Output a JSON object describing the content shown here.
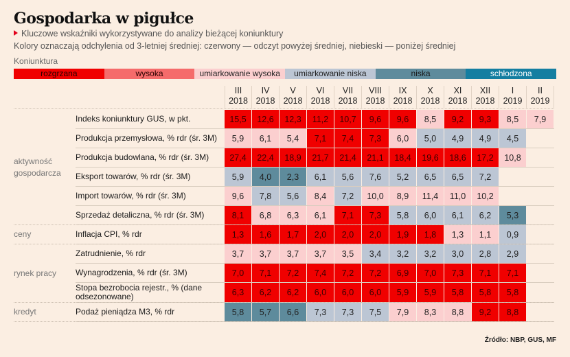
{
  "header": {
    "title": "Gospodarka w pigułce",
    "subtitle": "Kluczowe wskaźniki wykorzystywane do analizy bieżącej koniunktury",
    "note": "Kolory oznaczają odchylenia od 3-letniej średniej: czerwony — odczyt powyżej średniej, niebieski — poniżej średniej",
    "koniunktura_label": "Koniunktura"
  },
  "legend": [
    {
      "key": "R",
      "label": "rozgrzana",
      "color": "#f00000",
      "text_color": "#2a0000"
    },
    {
      "key": "W",
      "label": "wysoka",
      "color": "#f56b6b",
      "text_color": "#2a0000"
    },
    {
      "key": "UW",
      "label": "umiarkowanie wysoka",
      "color": "#fbcfcf",
      "text_color": "#222222"
    },
    {
      "key": "UN",
      "label": "umiarkowanie niska",
      "color": "#bcc6d4",
      "text_color": "#222222"
    },
    {
      "key": "N",
      "label": "niska",
      "color": "#5e8b9c",
      "text_color": "#1a1a1a"
    },
    {
      "key": "S",
      "label": "schłodzona",
      "color": "#147ea1",
      "text_color": "#ffffff"
    }
  ],
  "source": "Źródło: NBP, GUS, MF",
  "chart_data": {
    "type": "heatmap",
    "title": "Gospodarka w pigułce",
    "columns": [
      {
        "month": "III",
        "year": "2018"
      },
      {
        "month": "IV",
        "year": "2018"
      },
      {
        "month": "V",
        "year": "2018"
      },
      {
        "month": "VI",
        "year": "2018"
      },
      {
        "month": "VII",
        "year": "2018"
      },
      {
        "month": "VIII",
        "year": "2018"
      },
      {
        "month": "IX",
        "year": "2018"
      },
      {
        "month": "X",
        "year": "2018"
      },
      {
        "month": "XI",
        "year": "2018"
      },
      {
        "month": "XII",
        "year": "2018"
      },
      {
        "month": "I",
        "year": "2019"
      },
      {
        "month": "II",
        "year": "2019"
      }
    ],
    "groups": [
      {
        "label": "aktywność gospodarcza",
        "rows": [
          0,
          1,
          2,
          3,
          4,
          5
        ]
      },
      {
        "label": "ceny",
        "rows": [
          6
        ]
      },
      {
        "label": "rynek pracy",
        "rows": [
          7,
          8,
          9
        ]
      },
      {
        "label": "kredyt",
        "rows": [
          10
        ]
      }
    ],
    "rows": [
      {
        "label": "Indeks koniunktury GUS, w pkt.",
        "values": [
          "15,5",
          "12,6",
          "12,3",
          "11,2",
          "10,7",
          "9,6",
          "9,6",
          "8,5",
          "9,2",
          "9,3",
          "8,5",
          "7,9"
        ],
        "levels": [
          "R",
          "R",
          "R",
          "R",
          "R",
          "R",
          "R",
          "UW",
          "R",
          "R",
          "UW",
          "UW"
        ]
      },
      {
        "label": "Produkcja przemysłowa, % rdr (śr. 3M)",
        "values": [
          "5,9",
          "6,1",
          "5,4",
          "7,1",
          "7,4",
          "7,3",
          "6,0",
          "5,0",
          "4,9",
          "4,9",
          "4,5",
          null
        ],
        "levels": [
          "UW",
          "UW",
          "UW",
          "R",
          "R",
          "R",
          "UW",
          "UN",
          "UN",
          "UN",
          "UN",
          null
        ]
      },
      {
        "label": "Produkcja budowlana, % rdr (śr. 3M)",
        "values": [
          "27,4",
          "22,4",
          "18,9",
          "21,7",
          "21,4",
          "21,1",
          "18,4",
          "19,6",
          "18,6",
          "17,2",
          "10,8",
          null
        ],
        "levels": [
          "R",
          "R",
          "R",
          "R",
          "R",
          "R",
          "R",
          "R",
          "R",
          "R",
          "UW",
          null
        ]
      },
      {
        "label": "Eksport towarów, % rdr (śr. 3M)",
        "values": [
          "5,9",
          "4,0",
          "2,3",
          "6,1",
          "5,6",
          "7,6",
          "5,2",
          "6,5",
          "6,5",
          "7,2",
          null,
          null
        ],
        "levels": [
          "UN",
          "N",
          "N",
          "UN",
          "UN",
          "UN",
          "UN",
          "UN",
          "UN",
          "UN",
          null,
          null
        ]
      },
      {
        "label": "Import towarów, % rdr (śr. 3M)",
        "values": [
          "9,6",
          "7,8",
          "5,6",
          "8,4",
          "7,2",
          "10,0",
          "8,9",
          "11,4",
          "11,0",
          "10,2",
          null,
          null
        ],
        "levels": [
          "UW",
          "UN",
          "UN",
          "UW",
          "UN",
          "UW",
          "UW",
          "UW",
          "UW",
          "UW",
          null,
          null
        ]
      },
      {
        "label": "Sprzedaż detaliczna, % rdr (śr. 3M)",
        "values": [
          "8,1",
          "6,8",
          "6,3",
          "6,1",
          "7,1",
          "7,3",
          "5,8",
          "6,0",
          "6,1",
          "6,2",
          "5,3",
          null
        ],
        "levels": [
          "R",
          "UW",
          "UW",
          "UW",
          "R",
          "R",
          "UN",
          "UN",
          "UN",
          "UN",
          "N",
          null
        ]
      },
      {
        "label": "Inflacja CPI, % rdr",
        "values": [
          "1,3",
          "1,6",
          "1,7",
          "2,0",
          "2,0",
          "2,0",
          "1,9",
          "1,8",
          "1,3",
          "1,1",
          "0,9",
          null
        ],
        "levels": [
          "R",
          "R",
          "R",
          "R",
          "R",
          "R",
          "R",
          "R",
          "UW",
          "UW",
          "UN",
          null
        ]
      },
      {
        "label": "Zatrudnienie, % rdr",
        "values": [
          "3,7",
          "3,7",
          "3,7",
          "3,7",
          "3,5",
          "3,4",
          "3,2",
          "3,2",
          "3,0",
          "2,8",
          "2,9",
          null
        ],
        "levels": [
          "UW",
          "UW",
          "UW",
          "UW",
          "UW",
          "UN",
          "UN",
          "UN",
          "UN",
          "UN",
          "UN",
          null
        ]
      },
      {
        "label": "Wynagrodzenia, % rdr (śr. 3M)",
        "values": [
          "7,0",
          "7,1",
          "7,2",
          "7,4",
          "7,2",
          "7,2",
          "6,9",
          "7,0",
          "7,3",
          "7,1",
          "7,1",
          null
        ],
        "levels": [
          "R",
          "R",
          "R",
          "R",
          "R",
          "R",
          "R",
          "R",
          "R",
          "R",
          "R",
          null
        ]
      },
      {
        "label": "Stopa bezrobocia rejestr., % (dane odsezonowane)",
        "values": [
          "6,3",
          "6,2",
          "6,2",
          "6,0",
          "6,0",
          "6,0",
          "5,9",
          "5,9",
          "5,8",
          "5,8",
          "5,8",
          null
        ],
        "levels": [
          "R",
          "R",
          "R",
          "R",
          "R",
          "R",
          "R",
          "R",
          "R",
          "R",
          "R",
          null
        ]
      },
      {
        "label": "Podaż pieniądza M3, % rdr",
        "values": [
          "5,8",
          "5,7",
          "6,6",
          "7,3",
          "7,3",
          "7,5",
          "7,9",
          "8,3",
          "8,8",
          "9,2",
          "8,8",
          null
        ],
        "levels": [
          "N",
          "N",
          "N",
          "UN",
          "UN",
          "UN",
          "UW",
          "UW",
          "UW",
          "R",
          "R",
          null
        ]
      }
    ]
  }
}
